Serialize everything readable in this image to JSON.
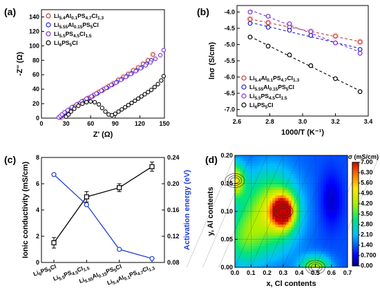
{
  "colors": {
    "li54al01": "#c0392b",
    "li555al015": "#1f1fd6",
    "li55": "#7b2fd6",
    "li6": "#000000",
    "activation": "#1f3fd6"
  },
  "chart_data": [
    {
      "panel": "(a)",
      "type": "scatter",
      "xlabel": "Z' (Ω)",
      "ylabel": "-Z'' (Ω)",
      "xlim": [
        0,
        150
      ],
      "ylim": [
        0,
        150
      ],
      "xticks": [
        "0",
        "30",
        "60",
        "90",
        "120",
        "150"
      ],
      "yticks": [
        "0",
        "20",
        "40",
        "60",
        "80",
        "100",
        "120",
        "140"
      ],
      "legend": [
        {
          "base": "Li",
          "parts": [
            [
              "5.4",
              true
            ],
            [
              "Al",
              false
            ],
            [
              "0.1",
              true
            ],
            [
              "PS",
              false
            ],
            [
              "4.7",
              true
            ],
            [
              "Cl",
              false
            ],
            [
              "1.3",
              true
            ]
          ]
        },
        {
          "base": "Li",
          "parts": [
            [
              "5.55",
              true
            ],
            [
              "Al",
              false
            ],
            [
              "0.15",
              true
            ],
            [
              "PS",
              false
            ],
            [
              "5",
              true
            ],
            [
              "Cl",
              false
            ]
          ]
        },
        {
          "base": "Li",
          "parts": [
            [
              "5.5",
              true
            ],
            [
              "PS",
              false
            ],
            [
              "4.5",
              true
            ],
            [
              "Cl",
              false
            ],
            [
              "1.5",
              true
            ]
          ]
        },
        {
          "base": "Li",
          "parts": [
            [
              "6",
              true
            ],
            [
              "PS",
              false
            ],
            [
              "5",
              true
            ],
            [
              "Cl",
              false
            ]
          ]
        }
      ],
      "series": [
        {
          "key": "li54al01",
          "x": [
            24,
            26,
            28,
            31,
            35,
            40,
            46,
            52,
            58,
            64,
            70,
            76,
            82,
            88,
            94,
            100,
            106,
            112,
            118,
            124,
            130,
            136
          ],
          "y": [
            1,
            3,
            5,
            8,
            12,
            16,
            20,
            24,
            28,
            32,
            36,
            40,
            44,
            48,
            53,
            57,
            61,
            66,
            70,
            75,
            80,
            88
          ]
        },
        {
          "key": "li555al015",
          "x": [
            22,
            24,
            26,
            29,
            33,
            38,
            44,
            50,
            56,
            62,
            68,
            74,
            80,
            86,
            92,
            98,
            104,
            110,
            116,
            122,
            128,
            134
          ],
          "y": [
            1,
            3,
            5,
            8,
            11,
            15,
            19,
            23,
            27,
            30,
            34,
            38,
            42,
            46,
            50,
            54,
            58,
            62,
            66,
            70,
            75,
            80
          ]
        },
        {
          "key": "li55",
          "x": [
            21,
            23,
            25,
            28,
            32,
            37,
            43,
            49,
            55,
            61,
            67,
            73,
            79,
            85,
            91,
            97,
            103,
            109,
            115,
            121,
            127,
            133,
            139,
            145,
            149
          ],
          "y": [
            1,
            3,
            5,
            8,
            11,
            15,
            19,
            23,
            27,
            30,
            34,
            38,
            42,
            46,
            49,
            53,
            57,
            61,
            65,
            69,
            73,
            77,
            82,
            87,
            94
          ]
        },
        {
          "key": "li6",
          "x": [
            30,
            33,
            36,
            40,
            45,
            50,
            55,
            60,
            65,
            70,
            74,
            78,
            82,
            86,
            90,
            94,
            98,
            102,
            106,
            110,
            114,
            118,
            122,
            126,
            130,
            134,
            138,
            142,
            146,
            149
          ],
          "y": [
            2,
            5,
            9,
            13,
            17,
            20,
            22,
            23,
            22,
            19,
            14,
            9,
            5,
            4,
            6,
            9,
            12,
            15,
            18,
            21,
            24,
            27,
            30,
            33,
            36,
            39,
            43,
            47,
            52,
            58
          ]
        }
      ]
    },
    {
      "panel": "(b)",
      "type": "scatter",
      "xlabel": "1000/T (K⁻¹)",
      "ylabel": "lnσ (S/cm)",
      "xlim": [
        2.6,
        3.4
      ],
      "ylim": [
        -7.2,
        -3.8
      ],
      "xticks": [
        "2.6",
        "2.8",
        "3.0",
        "3.2",
        "3.4"
      ],
      "yticks": [
        "-4.0",
        "-4.5",
        "-5.0",
        "-5.5",
        "-6.0",
        "-6.5",
        "-7.0"
      ],
      "series": [
        {
          "key": "li54al01",
          "x": [
            2.68,
            2.79,
            2.92,
            3.05,
            3.2,
            3.35
          ],
          "y": [
            -4.22,
            -4.33,
            -4.46,
            -4.6,
            -4.74,
            -4.92
          ]
        },
        {
          "key": "li555al015",
          "x": [
            2.68,
            2.79,
            2.92,
            3.05,
            3.2,
            3.35
          ],
          "y": [
            -4.35,
            -4.47,
            -4.56,
            -4.72,
            -4.95,
            -5.15
          ]
        },
        {
          "key": "li55",
          "x": [
            2.68,
            2.79,
            2.92,
            3.05,
            3.2,
            3.35
          ],
          "y": [
            -4.0,
            -4.13,
            -4.36,
            -4.6,
            -4.95,
            -5.27
          ]
        },
        {
          "key": "li6",
          "x": [
            2.68,
            2.79,
            2.92,
            3.05,
            3.2,
            3.35
          ],
          "y": [
            -4.77,
            -5.05,
            -5.32,
            -5.65,
            -6.05,
            -6.45
          ]
        }
      ]
    },
    {
      "panel": "(c)",
      "type": "line",
      "ylabel": "Ionic conductivity (mS/cm)",
      "y2label": "Activation energy (eV)",
      "ylim": [
        0,
        8
      ],
      "y2lim": [
        0.08,
        0.24
      ],
      "yticks": [
        "0",
        "2",
        "4",
        "6",
        "8"
      ],
      "y2ticks": [
        "0.08",
        "0.12",
        "0.16",
        "0.20",
        "0.24"
      ],
      "categories": [
        {
          "base": "Li",
          "parts": [
            [
              "6",
              true
            ],
            [
              "PS",
              false
            ],
            [
              "5",
              true
            ],
            [
              "Cl",
              false
            ]
          ]
        },
        {
          "base": "Li",
          "parts": [
            [
              "5.5",
              true
            ],
            [
              "PS",
              false
            ],
            [
              "4.5",
              true
            ],
            [
              "Cl",
              false
            ],
            [
              "1.5",
              true
            ]
          ]
        },
        {
          "base": "Li",
          "parts": [
            [
              "5.55",
              true
            ],
            [
              "Al",
              false
            ],
            [
              "0.15",
              true
            ],
            [
              "PS",
              false
            ],
            [
              "5",
              true
            ],
            [
              "Cl",
              false
            ]
          ]
        },
        {
          "base": "Li",
          "parts": [
            [
              "5.4",
              true
            ],
            [
              "Al",
              false
            ],
            [
              "0.1",
              true
            ],
            [
              "PS",
              false
            ],
            [
              "4.7",
              true
            ],
            [
              "Cl",
              false
            ],
            [
              "1.3",
              true
            ]
          ]
        }
      ],
      "series": [
        {
          "key": "conductivity",
          "values": [
            1.5,
            5.0,
            5.7,
            7.3
          ],
          "errors": [
            0.4,
            0.4,
            0.3,
            0.35
          ]
        },
        {
          "key": "activation",
          "values": [
            0.214,
            0.168,
            0.1,
            0.086
          ]
        }
      ]
    },
    {
      "panel": "(d)",
      "type": "heatmap",
      "xlabel": "x, Cl contents",
      "ylabel": "y, Al contents",
      "colorbar_label": "σ (mS/cm)",
      "xlim": [
        0,
        0.7
      ],
      "ylim": [
        0,
        0.2
      ],
      "xticks": [
        "0.0",
        "0.1",
        "0.2",
        "0.3",
        "0.4",
        "0.5",
        "0.6",
        "0.7"
      ],
      "yticks": [
        "0.00",
        "0.05",
        "0.10",
        "0.15",
        "0.20"
      ],
      "colorbar_ticks": [
        "7.00",
        "6.30",
        "5.60",
        "4.90",
        "4.20",
        "3.50",
        "2.80",
        "2.10",
        "1.40",
        "0.700",
        "0.00"
      ],
      "vlim": [
        0,
        7
      ],
      "peaks": [
        {
          "x": 0.3,
          "y": 0.1,
          "value": 7.0
        },
        {
          "x": 0.0,
          "y": 0.155,
          "value": 5.0
        },
        {
          "x": 0.5,
          "y": 0.0,
          "value": 4.3
        }
      ]
    }
  ]
}
